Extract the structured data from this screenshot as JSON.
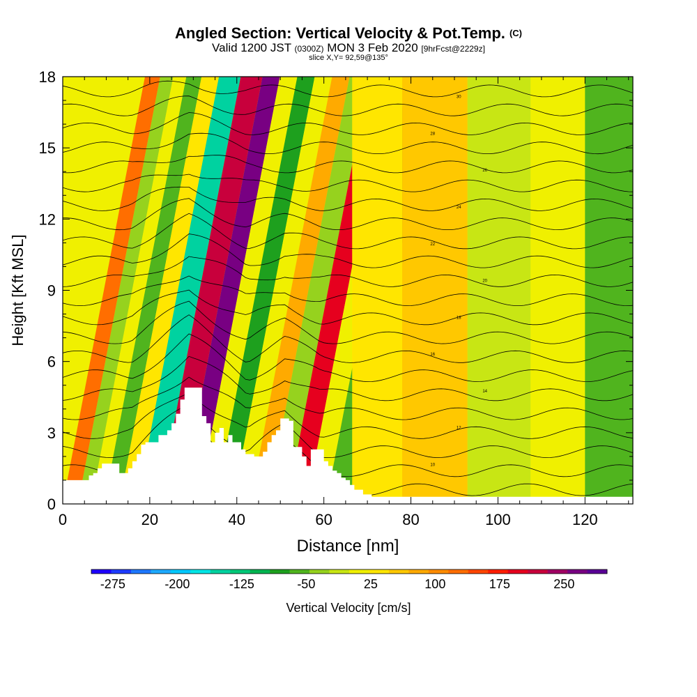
{
  "chart_data": {
    "type": "heatmap",
    "title": "Angled Section: Vertical Velocity & Pot.Temp.",
    "title_tag": "(C)",
    "subtitle_parts": [
      "Valid 1200 JST ",
      "(0300Z)",
      " MON 3 Feb 2020 ",
      "[9hrFcst@2229z]"
    ],
    "slice_label": "slice X,Y= 92,59@135°",
    "xlabel": "Distance [nm]",
    "ylabel": "Height [Kft MSL]",
    "xlim": [
      0,
      131
    ],
    "ylim": [
      0,
      18
    ],
    "x_ticks": [
      "0",
      "20",
      "40",
      "60",
      "80",
      "100",
      "120"
    ],
    "x_tick_values": [
      0,
      20,
      40,
      60,
      80,
      100,
      120
    ],
    "y_ticks": [
      "0",
      "3",
      "6",
      "9",
      "12",
      "15",
      "18"
    ],
    "y_tick_values": [
      0,
      3,
      6,
      9,
      12,
      15,
      18
    ],
    "colorbar": {
      "label": "Vertical Velocity [cm/s]",
      "tick_labels": [
        "-275",
        "-200",
        "-125",
        "-50",
        "25",
        "100",
        "175",
        "250"
      ],
      "tick_values": [
        -275,
        -200,
        -125,
        -50,
        25,
        100,
        175,
        250
      ],
      "range": [
        -300,
        300
      ],
      "colors": [
        "#1e00ff",
        "#1e3cff",
        "#1e78ff",
        "#1eaaff",
        "#00c8ff",
        "#00e6e6",
        "#00d2a0",
        "#00c878",
        "#00b450",
        "#1ea01e",
        "#50b41e",
        "#96d21e",
        "#c8e614",
        "#f0f000",
        "#ffe600",
        "#ffc800",
        "#ffaa00",
        "#ff8c00",
        "#ff6e00",
        "#ff4600",
        "#ff1e00",
        "#e6001e",
        "#c8003c",
        "#a00064",
        "#780082",
        "#5a0096"
      ]
    },
    "velocity_bands": [
      {
        "x": 2,
        "value": 120
      },
      {
        "x": 5,
        "value": -40
      },
      {
        "x": 8,
        "value": 0
      },
      {
        "x": 11,
        "value": -60
      },
      {
        "x": 15,
        "value": 30
      },
      {
        "x": 19,
        "value": -140
      },
      {
        "x": 25,
        "value": 210
      },
      {
        "x": 29,
        "value": 270
      },
      {
        "x": 33,
        "value": 20
      },
      {
        "x": 37,
        "value": -70
      },
      {
        "x": 41,
        "value": 20
      },
      {
        "x": 45,
        "value": 70
      },
      {
        "x": 49,
        "value": -40
      },
      {
        "x": 54,
        "value": 190
      },
      {
        "x": 58,
        "value": 20
      },
      {
        "x": 63,
        "value": -60
      },
      {
        "x": 70,
        "value": 30
      },
      {
        "x": 86,
        "value": 60
      },
      {
        "x": 100,
        "value": -10
      },
      {
        "x": 115,
        "value": 0
      },
      {
        "x": 125,
        "value": -50
      }
    ],
    "terrain": [
      {
        "x": 0,
        "y": 1.0
      },
      {
        "x": 5,
        "y": 1.0
      },
      {
        "x": 6,
        "y": 1.2
      },
      {
        "x": 7,
        "y": 1.3
      },
      {
        "x": 8,
        "y": 1.5
      },
      {
        "x": 9,
        "y": 1.7
      },
      {
        "x": 12,
        "y": 1.7
      },
      {
        "x": 13,
        "y": 1.3
      },
      {
        "x": 15,
        "y": 1.5
      },
      {
        "x": 16,
        "y": 1.8
      },
      {
        "x": 17,
        "y": 2.1
      },
      {
        "x": 18,
        "y": 2.5
      },
      {
        "x": 19,
        "y": 2.6
      },
      {
        "x": 21,
        "y": 2.6
      },
      {
        "x": 22,
        "y": 2.9
      },
      {
        "x": 24,
        "y": 3.1
      },
      {
        "x": 25,
        "y": 3.4
      },
      {
        "x": 26,
        "y": 3.8
      },
      {
        "x": 27,
        "y": 4.4
      },
      {
        "x": 28,
        "y": 4.9
      },
      {
        "x": 31,
        "y": 4.9
      },
      {
        "x": 32,
        "y": 3.7
      },
      {
        "x": 33,
        "y": 3.4
      },
      {
        "x": 34,
        "y": 2.6
      },
      {
        "x": 35,
        "y": 3.0
      },
      {
        "x": 36,
        "y": 3.2
      },
      {
        "x": 37,
        "y": 2.6
      },
      {
        "x": 38,
        "y": 2.9
      },
      {
        "x": 39,
        "y": 2.6
      },
      {
        "x": 41,
        "y": 2.3
      },
      {
        "x": 42,
        "y": 2.1
      },
      {
        "x": 44,
        "y": 2.0
      },
      {
        "x": 46,
        "y": 2.2
      },
      {
        "x": 47,
        "y": 2.6
      },
      {
        "x": 48,
        "y": 2.9
      },
      {
        "x": 49,
        "y": 3.1
      },
      {
        "x": 50,
        "y": 3.6
      },
      {
        "x": 52,
        "y": 3.5
      },
      {
        "x": 53,
        "y": 2.4
      },
      {
        "x": 55,
        "y": 2.0
      },
      {
        "x": 56,
        "y": 1.6
      },
      {
        "x": 57,
        "y": 2.3
      },
      {
        "x": 59,
        "y": 2.3
      },
      {
        "x": 60,
        "y": 1.8
      },
      {
        "x": 61,
        "y": 1.6
      },
      {
        "x": 62,
        "y": 1.4
      },
      {
        "x": 63,
        "y": 1.3
      },
      {
        "x": 64,
        "y": 1.1
      },
      {
        "x": 65,
        "y": 1.0
      },
      {
        "x": 66,
        "y": 0.8
      },
      {
        "x": 67,
        "y": 0.6
      },
      {
        "x": 68,
        "y": 0.6
      },
      {
        "x": 69,
        "y": 0.4
      },
      {
        "x": 70,
        "y": 0.4
      },
      {
        "x": 71,
        "y": 0.3
      },
      {
        "x": 131,
        "y": 0.3
      }
    ],
    "isentrope_labels": [
      "10",
      "12",
      "14",
      "16",
      "18",
      "20",
      "22",
      "24",
      "26",
      "28",
      "30"
    ]
  }
}
